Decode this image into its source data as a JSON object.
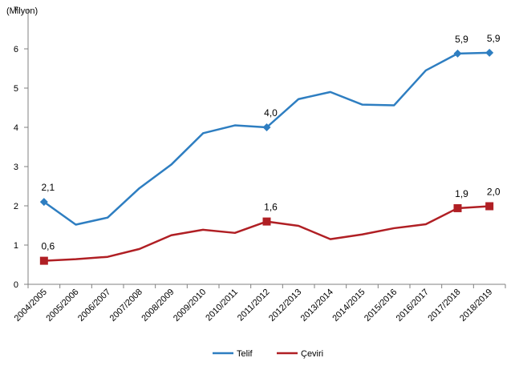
{
  "chart_data": {
    "type": "line",
    "unit_label": "(Milyon)",
    "categories": [
      "2004/2005",
      "2005/2006",
      "2006/2007",
      "2007/2008",
      "2008/2009",
      "2009/2010",
      "2010/2011",
      "2011/2012",
      "2012/2013",
      "2013/2014",
      "2014/2015",
      "2015/2016",
      "2016/2017",
      "2017/2018",
      "2018/2019"
    ],
    "ylim": [
      0,
      7
    ],
    "yticks": [
      "0",
      "1",
      "2",
      "3",
      "4",
      "5",
      "6",
      "7"
    ],
    "grid": false,
    "legend_position": "bottom",
    "series": [
      {
        "name": "Telif",
        "color": "#2E7EC1",
        "marker": "diamond",
        "values": [
          2.1,
          1.52,
          1.7,
          2.45,
          3.05,
          3.85,
          4.05,
          4.0,
          4.72,
          4.9,
          4.58,
          4.56,
          5.45,
          5.88,
          5.9
        ],
        "labels": [
          {
            "index": 0,
            "text": "2,1"
          },
          {
            "index": 7,
            "text": "4,0"
          },
          {
            "index": 13,
            "text": "5,9"
          },
          {
            "index": 14,
            "text": "5,9"
          }
        ]
      },
      {
        "name": "Çeviri",
        "color": "#B01F24",
        "marker": "square",
        "values": [
          0.6,
          0.64,
          0.7,
          0.9,
          1.25,
          1.39,
          1.31,
          1.6,
          1.49,
          1.15,
          1.27,
          1.43,
          1.53,
          1.94,
          1.99
        ],
        "labels": [
          {
            "index": 0,
            "text": "0,6"
          },
          {
            "index": 7,
            "text": "1,6"
          },
          {
            "index": 13,
            "text": "1,9"
          },
          {
            "index": 14,
            "text": "2,0"
          }
        ]
      }
    ]
  }
}
